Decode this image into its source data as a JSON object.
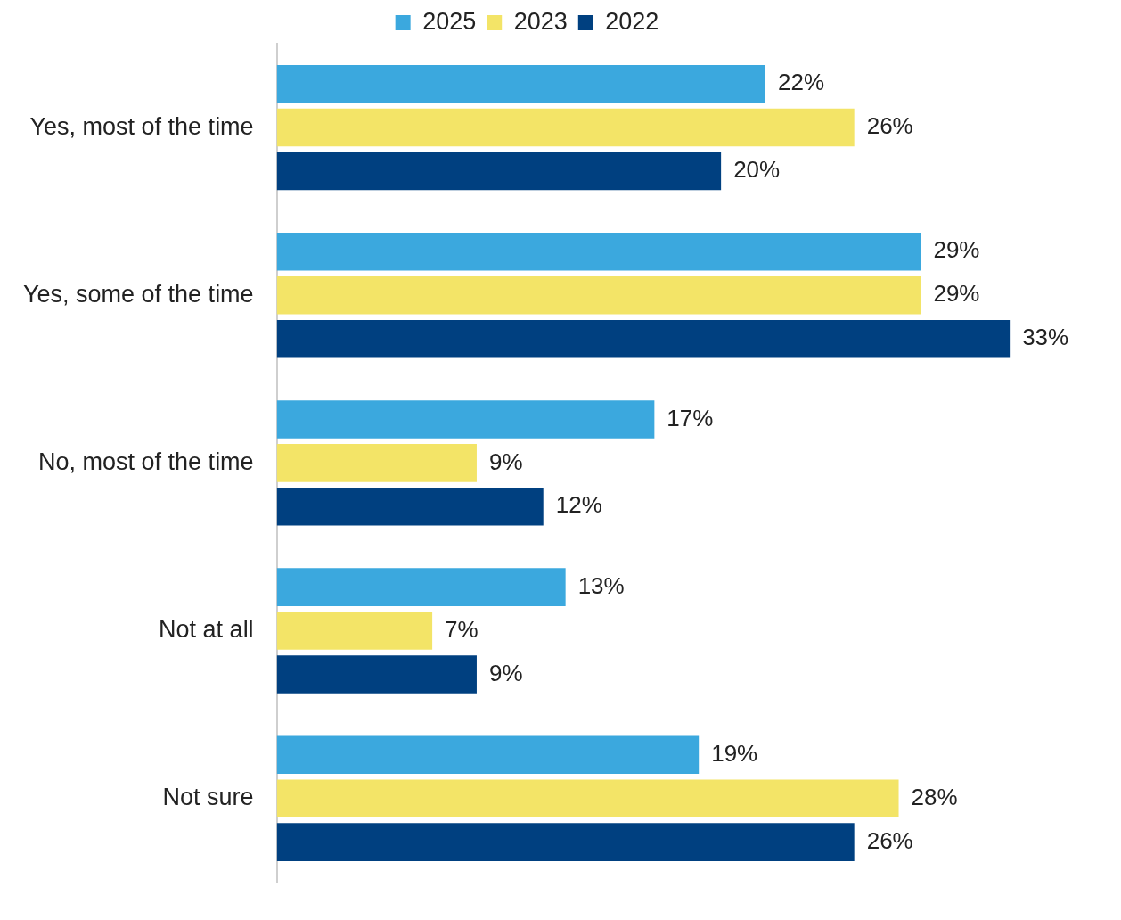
{
  "chart_data": {
    "type": "bar",
    "orientation": "horizontal",
    "categories": [
      "Yes, most of the time",
      "Yes, some of the time",
      "No, most of the time",
      "Not at all",
      "Not sure"
    ],
    "series": [
      {
        "name": "2025",
        "color": "#3ba8de",
        "values": [
          22,
          29,
          17,
          13,
          19
        ],
        "value_labels": [
          "22%",
          "29%",
          "17%",
          "13%",
          "19%"
        ]
      },
      {
        "name": "2023",
        "color": "#f3e467",
        "values": [
          26,
          29,
          9,
          7,
          28
        ],
        "value_labels": [
          "26%",
          "29%",
          "9%",
          "7%",
          "28%"
        ]
      },
      {
        "name": "2022",
        "color": "#004080",
        "values": [
          20,
          33,
          12,
          9,
          26
        ],
        "value_labels": [
          "20%",
          "33%",
          "12%",
          "9%",
          "26%"
        ]
      }
    ],
    "tick_labels": "y",
    "grid": false,
    "legend": "top"
  }
}
